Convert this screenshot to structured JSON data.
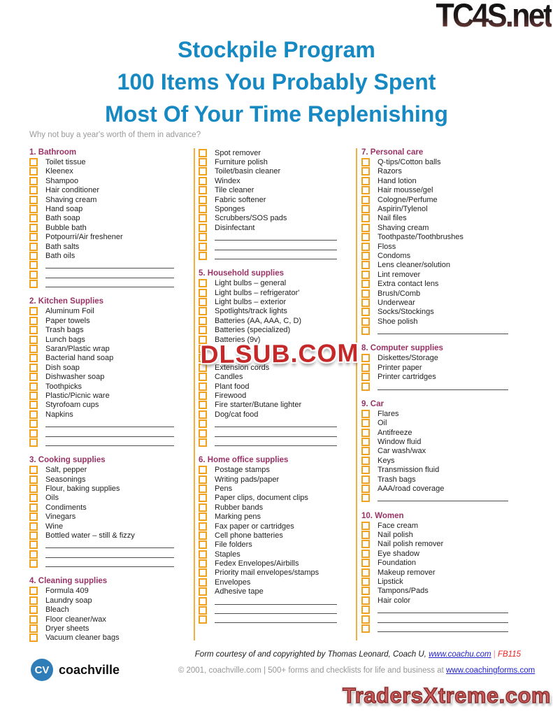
{
  "watermarks": {
    "top_right": "TC4S.net",
    "center": "DLSUB.COM",
    "bottom_right": "TradersXtreme.com"
  },
  "header": {
    "title_lines": [
      "Stockpile Program",
      "100 Items You Probably Spent",
      "Most Of Your Time Replenishing"
    ],
    "subtitle": "Why not buy a year's worth of them in advance?"
  },
  "columns": [
    {
      "blocks": [
        {
          "heading": "1. Bathroom",
          "items": [
            {
              "label": "Toilet tissue"
            },
            {
              "label": "Kleenex"
            },
            {
              "label": "Shampoo"
            },
            {
              "label": "Hair conditioner"
            },
            {
              "label": "Shaving cream"
            },
            {
              "label": "Hand soap"
            },
            {
              "label": "Bath soap"
            },
            {
              "label": "Bubble bath"
            },
            {
              "label": "Potpourri/Air freshener"
            },
            {
              "label": "Bath salts"
            },
            {
              "label": "Bath oils"
            },
            {
              "write_in": true
            },
            {
              "write_in": true
            },
            {
              "write_in": true
            }
          ]
        },
        {
          "heading": "2. Kitchen Supplies",
          "items": [
            {
              "label": "Aluminum Foil"
            },
            {
              "label": "Paper towels"
            },
            {
              "label": "Trash bags"
            },
            {
              "label": "Lunch bags"
            },
            {
              "label": "Saran/Plastic wrap"
            },
            {
              "label": "Bacterial hand soap"
            },
            {
              "label": "Dish soap"
            },
            {
              "label": "Dishwasher soap"
            },
            {
              "label": "Toothpicks"
            },
            {
              "label": "Plastic/Picnic ware"
            },
            {
              "label": "Styrofoam cups"
            },
            {
              "label": "Napkins"
            },
            {
              "write_in": true
            },
            {
              "write_in": true
            },
            {
              "write_in": true
            }
          ]
        },
        {
          "heading": "3. Cooking supplies",
          "items": [
            {
              "label": "Salt, pepper"
            },
            {
              "label": "Seasonings"
            },
            {
              "label": "Flour, baking supplies"
            },
            {
              "label": "Oils"
            },
            {
              "label": "Condiments"
            },
            {
              "label": "Vinegars"
            },
            {
              "label": "Wine"
            },
            {
              "label": "Bottled water – still & fizzy"
            },
            {
              "write_in": true
            },
            {
              "write_in": true
            },
            {
              "write_in": true
            }
          ]
        },
        {
          "heading": "4. Cleaning supplies",
          "items": [
            {
              "label": "Formula 409"
            },
            {
              "label": "Laundry soap"
            },
            {
              "label": "Bleach"
            },
            {
              "label": "Floor cleaner/wax"
            },
            {
              "label": "Dryer sheets"
            },
            {
              "label": "Vacuum cleaner bags"
            }
          ]
        }
      ]
    },
    {
      "blocks": [
        {
          "items": [
            {
              "label": "Spot remover"
            },
            {
              "label": "Furniture polish"
            },
            {
              "label": "Toilet/basin cleaner"
            },
            {
              "label": "Windex"
            },
            {
              "label": "Tile cleaner"
            },
            {
              "label": "Fabric softener"
            },
            {
              "label": "Sponges"
            },
            {
              "label": "Scrubbers/SOS pads"
            },
            {
              "label": "Disinfectant"
            },
            {
              "write_in": true
            },
            {
              "write_in": true
            },
            {
              "write_in": true
            }
          ]
        },
        {
          "heading": "5. Household supplies",
          "items": [
            {
              "label": "Light bulbs – general"
            },
            {
              "label": "Light bulbs – refrigerator'"
            },
            {
              "label": "Light bulbs – exterior"
            },
            {
              "label": "Spotlights/track lights"
            },
            {
              "label": "Batteries (AA, AAA, C, D)"
            },
            {
              "label": "Batteries (specialized)"
            },
            {
              "label": "Batteries (9v)"
            },
            {
              "label": "",
              "obscured_by_watermark": true
            },
            {
              "label": "",
              "obscured_by_watermark": true
            },
            {
              "label": "Extension cords"
            },
            {
              "label": "Candles"
            },
            {
              "label": "Plant food"
            },
            {
              "label": "Firewood"
            },
            {
              "label": "Fire starter/Butane lighter"
            },
            {
              "label": "Dog/cat food"
            },
            {
              "write_in": true
            },
            {
              "write_in": true
            },
            {
              "write_in": true
            }
          ]
        },
        {
          "heading": "6. Home office supplies",
          "items": [
            {
              "label": "Postage stamps"
            },
            {
              "label": "Writing pads/paper"
            },
            {
              "label": "Pens"
            },
            {
              "label": "Paper clips, document clips"
            },
            {
              "label": "Rubber bands"
            },
            {
              "label": "Marking pens"
            },
            {
              "label": "Fax paper or cartridges"
            },
            {
              "label": "Cell phone batteries"
            },
            {
              "label": "File folders"
            },
            {
              "label": "Staples"
            },
            {
              "label": "Fedex Envelopes/Airbills"
            },
            {
              "label": "Priority mail envelopes/stamps"
            },
            {
              "label": "Envelopes"
            },
            {
              "label": "Adhesive tape"
            },
            {
              "write_in": true
            },
            {
              "write_in": true
            },
            {
              "write_in": true
            }
          ]
        }
      ]
    },
    {
      "blocks": [
        {
          "heading": "7. Personal care",
          "items": [
            {
              "label": "Q-tips/Cotton balls"
            },
            {
              "label": "Razors"
            },
            {
              "label": "Hand lotion"
            },
            {
              "label": "Hair mousse/gel"
            },
            {
              "label": "Cologne/Perfume"
            },
            {
              "label": "Aspirin/Tylenol"
            },
            {
              "label": "Nail files"
            },
            {
              "label": "Shaving cream"
            },
            {
              "label": "Toothpaste/Toothbrushes"
            },
            {
              "label": "Floss"
            },
            {
              "label": "Condoms"
            },
            {
              "label": "Lens cleaner/solution"
            },
            {
              "label": "Lint remover"
            },
            {
              "label": "Extra contact lens"
            },
            {
              "label": "Brush/Comb"
            },
            {
              "label": "Underwear"
            },
            {
              "label": "Socks/Stockings"
            },
            {
              "label": "Shoe polish"
            },
            {
              "write_in": true
            }
          ]
        },
        {
          "heading": "8. Computer supplies",
          "items": [
            {
              "label": "Diskettes/Storage"
            },
            {
              "label": "Printer paper"
            },
            {
              "label": "Printer cartridges"
            },
            {
              "write_in": true
            }
          ]
        },
        {
          "heading": "9. Car",
          "items": [
            {
              "label": "Flares"
            },
            {
              "label": "Oil"
            },
            {
              "label": "Antifreeze"
            },
            {
              "label": "Window fluid"
            },
            {
              "label": "Car wash/wax"
            },
            {
              "label": "Keys"
            },
            {
              "label": "Transmission fluid"
            },
            {
              "label": "Trash bags"
            },
            {
              "label": "AAA/road coverage"
            },
            {
              "write_in": true
            }
          ]
        },
        {
          "heading": "10. Women",
          "items": [
            {
              "label": "Face cream"
            },
            {
              "label": "Nail polish"
            },
            {
              "label": "Nail polish remover"
            },
            {
              "label": "Eye shadow"
            },
            {
              "label": "Foundation"
            },
            {
              "label": "Makeup remover"
            },
            {
              "label": "Lipstick"
            },
            {
              "label": "Tampons/Pads"
            },
            {
              "label": "Hair color"
            },
            {
              "write_in": true
            },
            {
              "write_in": true
            },
            {
              "write_in": true
            }
          ]
        }
      ]
    }
  ],
  "footer": {
    "credit_prefix": "Form courtesy of and copyrighted by Thomas Leonard, Coach U, ",
    "credit_link": "www.coachu.com",
    "credit_sep": " | ",
    "credit_code": "FB115",
    "copyright_prefix": "© 2001, coachville.com | 500+ forms and checklists for life and business at ",
    "copyright_link": "www.coachingforms.com",
    "logo_initials": "CV",
    "logo_name": "coachville"
  },
  "colors": {
    "title_blue": "#1789C2",
    "heading_plum": "#993366",
    "checkbox_orange": "#F0A11E",
    "divider_orange": "#F2AE3C",
    "link_blue": "#2222CC",
    "code_red": "#EE2222",
    "dlsub_red": "#C42828",
    "traders_red": "#C75B5B"
  }
}
